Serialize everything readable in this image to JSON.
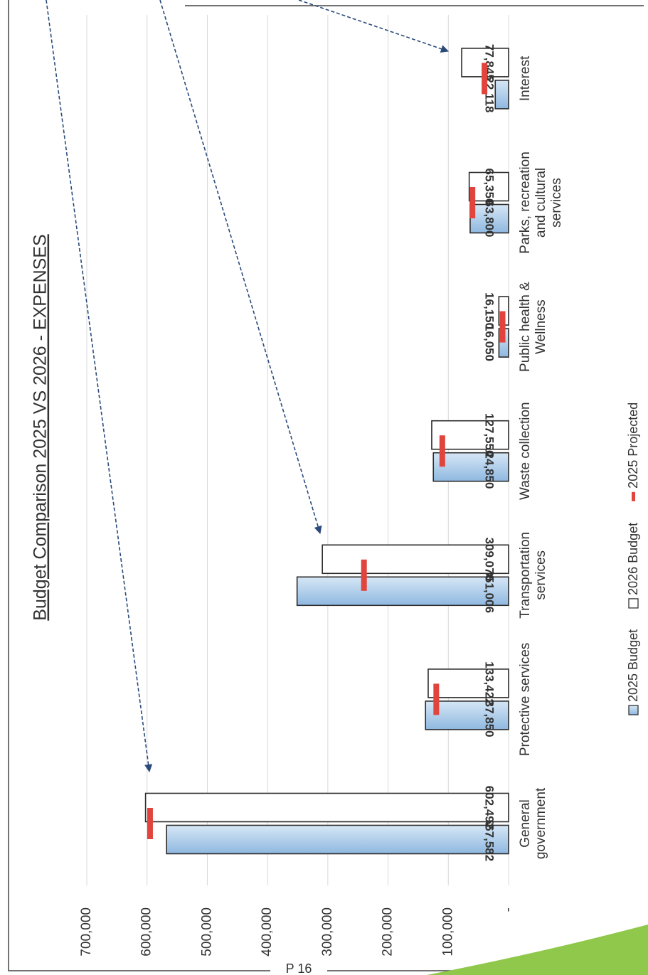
{
  "chart_data": {
    "type": "bar",
    "title": "Budget Comparison 2025 VS 2026 - EXPENSES",
    "categories": [
      "General government",
      "Protective services",
      "Transportation services",
      "Waste collection",
      "Public health & Wellness",
      "Parks, recreation and cultural services",
      "Interest"
    ],
    "series": [
      {
        "name": "2025 Budget",
        "kind": "bar",
        "color": "#a9cbe9",
        "values": [
          567582,
          137850,
          351006,
          124850,
          16050,
          63800,
          22118
        ],
        "value_labels": [
          "567,582",
          "137,850",
          "351,006",
          "124,850",
          "16,050",
          "63,800",
          "22,118"
        ]
      },
      {
        "name": "2026 Budget",
        "kind": "bar",
        "color": "#ffffff",
        "values": [
          602492,
          133422,
          309070,
          127550,
          16150,
          65350,
          77845
        ],
        "value_labels": [
          "602,492",
          "133,422",
          "309,070",
          "127,550",
          "16,150",
          "65,350",
          "77,845"
        ]
      },
      {
        "name": "2025 Projected",
        "kind": "dash",
        "color": "#e0443c",
        "values": [
          595000,
          120000,
          240000,
          110000,
          10000,
          60000,
          40000
        ]
      }
    ],
    "ylim": [
      0,
      700000
    ],
    "yticks": [
      {
        "value": 0,
        "label": "-"
      },
      {
        "value": 100000,
        "label": "100,000"
      },
      {
        "value": 200000,
        "label": "200,000"
      },
      {
        "value": 300000,
        "label": "300,000"
      },
      {
        "value": 400000,
        "label": "400,000"
      },
      {
        "value": 500000,
        "label": "500,000"
      },
      {
        "value": 600000,
        "label": "600,000"
      },
      {
        "value": 700000,
        "label": "700,000"
      }
    ],
    "grid": true
  },
  "footer": "P 16"
}
